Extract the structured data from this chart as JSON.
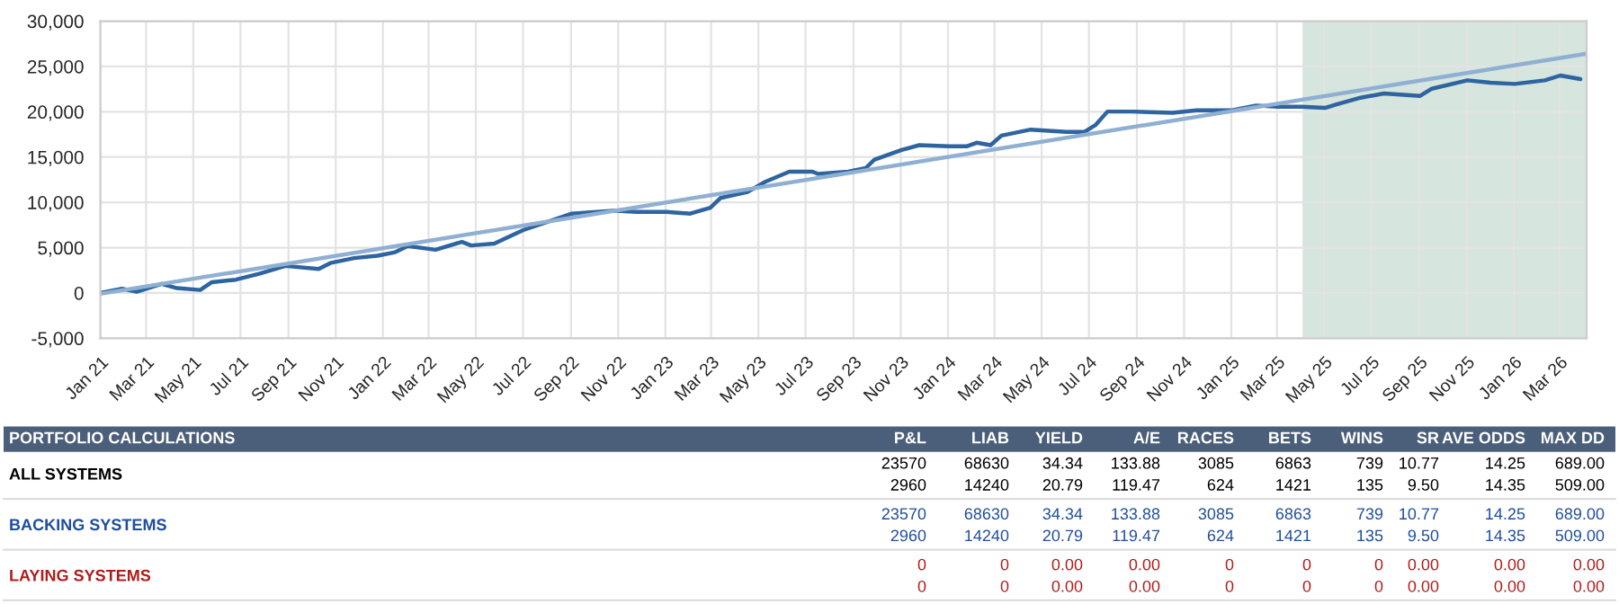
{
  "chart_data": [
    {
      "type": "line",
      "x": [
        "2021-01-01",
        "2021-01-29",
        "2021-02-17",
        "2021-03-21",
        "2021-04-10",
        "2021-05-10",
        "2021-05-25",
        "2021-06-25",
        "2021-07-25",
        "2021-08-28",
        "2021-10-10",
        "2021-10-25",
        "2021-11-25",
        "2021-12-25",
        "2022-01-17",
        "2022-02-02",
        "2022-03-10",
        "2022-04-13",
        "2022-04-25",
        "2022-05-25",
        "2022-06-10",
        "2022-07-02",
        "2022-08-10",
        "2022-09-02",
        "2022-10-25",
        "2022-11-25",
        "2023-01-02",
        "2023-02-02",
        "2023-02-28",
        "2023-03-13",
        "2023-04-17",
        "2023-05-10",
        "2023-06-10",
        "2023-07-10",
        "2023-07-17",
        "2023-08-25",
        "2023-09-17",
        "2023-09-28",
        "2023-11-02",
        "2023-11-25",
        "2024-01-02",
        "2024-01-25",
        "2024-02-07",
        "2024-02-25",
        "2024-03-10",
        "2024-04-17",
        "2024-06-02",
        "2024-06-25",
        "2024-07-10",
        "2024-07-25",
        "2024-08-25",
        "2024-10-17",
        "2024-11-17",
        "2025-01-02",
        "2025-02-02",
        "2025-03-02",
        "2025-04-02",
        "2025-05-02",
        "2025-05-17",
        "2025-06-17",
        "2025-07-17",
        "2025-09-02",
        "2025-09-17",
        "2025-11-02",
        "2025-12-02",
        "2026-01-02",
        "2026-02-10",
        "2026-03-02",
        "2026-03-28"
      ],
      "series": [
        {
          "color": "#2e64a0",
          "values": [
            0,
            460,
            130,
            1000,
            530,
            330,
            1190,
            1460,
            2120,
            2980,
            2650,
            3300,
            3850,
            4110,
            4500,
            5170,
            4770,
            5640,
            5240,
            5440,
            6100,
            6960,
            8090,
            8750,
            9080,
            8950,
            8950,
            8750,
            9410,
            10480,
            11140,
            12270,
            13390,
            13390,
            13130,
            13390,
            13790,
            14720,
            15780,
            16310,
            16180,
            16180,
            16580,
            16310,
            17370,
            18030,
            17770,
            17770,
            18560,
            20020,
            20020,
            19890,
            20160,
            20160,
            20690,
            20550,
            20550,
            20420,
            20820,
            21550,
            22010,
            21750,
            22540,
            23470,
            23200,
            23070,
            23470,
            24000,
            23600
          ]
        },
        {
          "type": "line",
          "color": "#8fb0d2",
          "x": [
            "2021-01-01",
            "2026-04-05"
          ],
          "values": [
            -100,
            26400
          ]
        }
      ],
      "xlim": [
        "2021-01-01",
        "2026-04-05"
      ],
      "xticks": [
        {
          "value": "2021-01",
          "label": "Jan 21"
        },
        {
          "value": "2021-03",
          "label": "Mar 21"
        },
        {
          "value": "2021-05",
          "label": "May 21"
        },
        {
          "value": "2021-07",
          "label": "Jul 21"
        },
        {
          "value": "2021-09",
          "label": "Sep 21"
        },
        {
          "value": "2021-11",
          "label": "Nov 21"
        },
        {
          "value": "2022-01",
          "label": "Jan 22"
        },
        {
          "value": "2022-03",
          "label": "Mar 22"
        },
        {
          "value": "2022-05",
          "label": "May 22"
        },
        {
          "value": "2022-07",
          "label": "Jul 22"
        },
        {
          "value": "2022-09",
          "label": "Sep 22"
        },
        {
          "value": "2022-11",
          "label": "Nov 22"
        },
        {
          "value": "2023-01",
          "label": "Jan 23"
        },
        {
          "value": "2023-03",
          "label": "Mar 23"
        },
        {
          "value": "2023-05",
          "label": "May 23"
        },
        {
          "value": "2023-07",
          "label": "Jul 23"
        },
        {
          "value": "2023-09",
          "label": "Sep 23"
        },
        {
          "value": "2023-11",
          "label": "Nov 23"
        },
        {
          "value": "2024-01",
          "label": "Jan 24"
        },
        {
          "value": "2024-03",
          "label": "Mar 24"
        },
        {
          "value": "2024-05",
          "label": "May 24"
        },
        {
          "value": "2024-07",
          "label": "Jul 24"
        },
        {
          "value": "2024-09",
          "label": "Sep 24"
        },
        {
          "value": "2024-11",
          "label": "Nov 24"
        },
        {
          "value": "2025-01",
          "label": "Jan 25"
        },
        {
          "value": "2025-03",
          "label": "Mar 25"
        },
        {
          "value": "2025-05",
          "label": "May 25"
        },
        {
          "value": "2025-07",
          "label": "Jul 25"
        },
        {
          "value": "2025-09",
          "label": "Sep 25"
        },
        {
          "value": "2025-11",
          "label": "Nov 25"
        },
        {
          "value": "2026-01",
          "label": "Jan 26"
        },
        {
          "value": "2026-03",
          "label": "Mar 26"
        }
      ],
      "ylim": [
        -5000,
        30000
      ],
      "yticks": [
        {
          "value": -5000,
          "label": "-5,000"
        },
        0,
        {
          "value": 5000,
          "label": "5,000"
        },
        {
          "value": 10000,
          "label": "10,000"
        },
        {
          "value": 15000,
          "label": "15,000"
        },
        {
          "value": 20000,
          "label": "20,000"
        },
        {
          "value": 25000,
          "label": "25,000"
        },
        {
          "value": 30000,
          "label": "30,000"
        }
      ],
      "bands": [
        {
          "axis": "x",
          "from": "2025-04-03",
          "to": "2026-04-05",
          "color": "#d6e5dd"
        }
      ],
      "grid": true,
      "marker": "none",
      "line_style": "solid"
    },
    {
      "type": "other",
      "annotations": [
        "PORTFOLIO CALCULATIONS",
        "P&L",
        "LIAB",
        "YIELD",
        "A/E",
        "RACES",
        "BETS",
        "WINS",
        "SR",
        "AVE ODDS",
        "MAX DD",
        "ALL SYSTEMS",
        "23570",
        "68630",
        "34.34",
        "133.88",
        "3085",
        "6863",
        "739",
        "10.77",
        "14.25",
        "689.00",
        "2960",
        "14240",
        "20.79",
        "119.47",
        "624",
        "1421",
        "135",
        "9.50",
        "14.35",
        "509.00",
        "BACKING SYSTEMS",
        "23570",
        "68630",
        "34.34",
        "133.88",
        "3085",
        "6863",
        "739",
        "10.77",
        "14.25",
        "689.00",
        "2960",
        "14240",
        "20.79",
        "119.47",
        "624",
        "1421",
        "135",
        "9.50",
        "14.35",
        "509.00",
        "LAYING SYSTEMS",
        "0",
        "0",
        "0.00",
        "0.00",
        "0",
        "0",
        "0",
        "0.00",
        "0.00",
        "0.00",
        "0",
        "0",
        "0.00",
        "0.00",
        "0",
        "0",
        "0",
        "0.00",
        "0.00",
        "0.00"
      ]
    }
  ]
}
